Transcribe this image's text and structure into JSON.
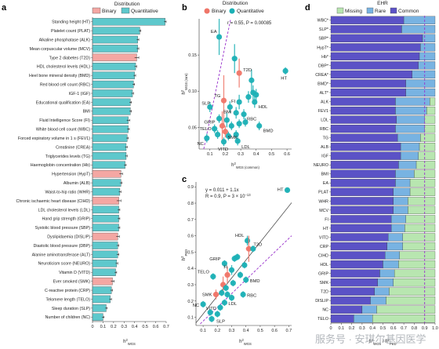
{
  "colors": {
    "binary": "#f4a7a3",
    "quantitative": "#5ec8cc",
    "point_binary": "#ef7568",
    "point_quant": "#1bb0b5",
    "missing": "#b8e6b0",
    "rare": "#78b3e2",
    "common": "#5b52c6",
    "guide": "#9932cc"
  },
  "watermark": "服务号 · 安琪尔基因医学",
  "chart_data": [
    {
      "panel": "a",
      "type": "bar",
      "legend_title": "Distribution",
      "legend": [
        "Binary",
        "Quantitative"
      ],
      "xlabel_main": "h",
      "xlabel_sup": "2",
      "xlabel_sub": "WGS",
      "xlim": [
        0,
        0.7
      ],
      "xticks": [
        "0",
        "0.1",
        "0.2",
        "0.3",
        "0.4",
        "0.5",
        "0.6",
        "0.7"
      ],
      "categories": [
        "Standing height (HT)",
        "Platelet count (PLAT)",
        "Alkaline phosphatase (ALK)",
        "Mean corpuscular volume (MCV)",
        "Type 2 diabetes (T2D)",
        "HDL cholesterol levels (HDL)",
        "Heel bone mineral density (BMD)",
        "Red blood cell count (RBC)",
        "IGF-1 (IGF)",
        "Educational qualification (EA)",
        "BMI",
        "Fluid Intelligence Score (FI)",
        "White blood cell count (WBC)",
        "Forced expiratory volume in 1 s (FEV1)",
        "Creatinine (CREA)",
        "Triglycerides levels (TG)",
        "Haemoglobin concentration (Hb)",
        "Hypertension (HypT)",
        "Albumin (ALB)",
        "Waist-to-hip ratio (WHR)",
        "Chronic ischaemic heart disease (CIHD)",
        "LDL cholesterol levels (LDL)",
        "Hand grip strength (GRIP)",
        "Systolic blood pressure (SBP)",
        "Dyslipidaemia (DISLIP)",
        "Diastolic blood pressure (DBP)",
        "Alanine aminotransferase (ALT)",
        "Neuroticism score (NEURO)",
        "Vitamin D (VITD)",
        "Ever smoked (SMK)",
        "C-reactive protein (CRP)",
        "Telomere length (TELO)",
        "Sleep duration (SLP)",
        "Number of children (NC)"
      ],
      "values": [
        0.69,
        0.45,
        0.43,
        0.43,
        0.42,
        0.41,
        0.4,
        0.39,
        0.38,
        0.36,
        0.36,
        0.34,
        0.34,
        0.33,
        0.32,
        0.32,
        0.31,
        0.27,
        0.27,
        0.26,
        0.25,
        0.25,
        0.25,
        0.25,
        0.24,
        0.24,
        0.24,
        0.23,
        0.22,
        0.19,
        0.18,
        0.17,
        0.13,
        0.1
      ],
      "errors": [
        0.01,
        0.01,
        0.01,
        0.01,
        0.02,
        0.01,
        0.01,
        0.01,
        0.01,
        0.01,
        0.01,
        0.015,
        0.01,
        0.01,
        0.01,
        0.01,
        0.01,
        0.015,
        0.01,
        0.01,
        0.02,
        0.01,
        0.01,
        0.01,
        0.015,
        0.01,
        0.01,
        0.01,
        0.01,
        0.015,
        0.01,
        0.01,
        0.01,
        0.01
      ],
      "types": [
        "Q",
        "Q",
        "Q",
        "Q",
        "B",
        "Q",
        "Q",
        "Q",
        "Q",
        "Q",
        "Q",
        "Q",
        "Q",
        "Q",
        "Q",
        "Q",
        "Q",
        "B",
        "Q",
        "Q",
        "B",
        "Q",
        "Q",
        "Q",
        "B",
        "Q",
        "Q",
        "Q",
        "Q",
        "B",
        "Q",
        "Q",
        "Q",
        "Q"
      ]
    },
    {
      "panel": "b",
      "type": "scatter",
      "legend_title": "Distribution",
      "legend": [
        "Binary",
        "Quantitative"
      ],
      "annotation": "r = 0.55, P = 0.00085",
      "xlabel_main": "h",
      "xlabel_sup": "2",
      "xlabel_sub": "WGS (common)",
      "ylabel_main": "h",
      "ylabel_sup": "2",
      "ylabel_sub": "WGS (rare)",
      "xlim": [
        0.03,
        0.63
      ],
      "ylim": [
        0.02,
        0.2
      ],
      "xticks": [
        0.1,
        0.2,
        0.3,
        0.4,
        0.5,
        0.6
      ],
      "yticks": [
        0.05,
        0.1,
        0.15
      ],
      "ytick_labels": [
        "0.05",
        "0.10",
        "0.15"
      ],
      "points": [
        {
          "label": "EA",
          "x": 0.16,
          "y": 0.175,
          "t": "Q",
          "ey": 0.025
        },
        {
          "label": "",
          "x": 0.26,
          "y": 0.145,
          "t": "Q",
          "ey": 0.02
        },
        {
          "label": "T2D",
          "x": 0.29,
          "y": 0.125,
          "t": "B",
          "ey": 0.02
        },
        {
          "label": "HT",
          "x": 0.59,
          "y": 0.128,
          "t": "Q",
          "ey": 0.005
        },
        {
          "label": "",
          "x": 0.37,
          "y": 0.115,
          "t": "Q",
          "ey": 0.015
        },
        {
          "label": "",
          "x": 0.38,
          "y": 0.098,
          "t": "Q",
          "ey": 0.01
        },
        {
          "label": "",
          "x": 0.4,
          "y": 0.095,
          "t": "Q",
          "ey": 0.008
        },
        {
          "label": "",
          "x": 0.35,
          "y": 0.092,
          "t": "Q",
          "ey": 0.008
        },
        {
          "label": "FI",
          "x": 0.29,
          "y": 0.085,
          "t": "Q",
          "ey": 0.01
        },
        {
          "label": "HDL",
          "x": 0.39,
          "y": 0.085,
          "t": "Q",
          "ey": 0.008
        },
        {
          "label": "TG",
          "x": 0.19,
          "y": 0.087,
          "t": "B",
          "ey": 0.035
        },
        {
          "label": "BMI",
          "x": 0.23,
          "y": 0.078,
          "t": "Q",
          "ey": 0.008
        },
        {
          "label": "SLP",
          "x": 0.1,
          "y": 0.078,
          "t": "Q",
          "ey": 0.007
        },
        {
          "label": "",
          "x": 0.27,
          "y": 0.07,
          "t": "Q",
          "ey": 0.008
        },
        {
          "label": "RBC",
          "x": 0.32,
          "y": 0.068,
          "t": "Q",
          "ey": 0.007
        },
        {
          "label": "GRIP",
          "x": 0.16,
          "y": 0.062,
          "t": "Q",
          "ey": 0.006
        },
        {
          "label": "",
          "x": 0.21,
          "y": 0.06,
          "t": "Q",
          "ey": 0.01
        },
        {
          "label": "TELO",
          "x": 0.13,
          "y": 0.048,
          "t": "Q",
          "ey": 0.006
        },
        {
          "label": "",
          "x": 0.18,
          "y": 0.052,
          "t": "B",
          "ey": 0.02
        },
        {
          "label": "SMK",
          "x": 0.2,
          "y": 0.044,
          "t": "B",
          "ey": 0.008
        },
        {
          "label": "",
          "x": 0.24,
          "y": 0.052,
          "t": "Q",
          "ey": 0.006
        },
        {
          "label": "",
          "x": 0.29,
          "y": 0.055,
          "t": "Q",
          "ey": 0.006
        },
        {
          "label": "",
          "x": 0.33,
          "y": 0.057,
          "t": "Q",
          "ey": 0.006
        },
        {
          "label": "BMD",
          "x": 0.42,
          "y": 0.052,
          "t": "Q",
          "ey": 0.006
        },
        {
          "label": "NC",
          "x": 0.08,
          "y": 0.035,
          "t": "Q",
          "ey": 0.006
        },
        {
          "label": "",
          "x": 0.15,
          "y": 0.04,
          "t": "Q",
          "ey": 0.006
        },
        {
          "label": "",
          "x": 0.22,
          "y": 0.038,
          "t": "Q",
          "ey": 0.006
        },
        {
          "label": "",
          "x": 0.27,
          "y": 0.04,
          "t": "Q",
          "ey": 0.006
        },
        {
          "label": "VITD",
          "x": 0.19,
          "y": 0.03,
          "t": "Q",
          "ey": 0.006
        },
        {
          "label": "LDL",
          "x": 0.28,
          "y": 0.031,
          "t": "Q",
          "ey": 0.006
        }
      ]
    },
    {
      "panel": "c",
      "type": "scatter",
      "annotation_lines": [
        "y = 0.011 + 1.1x",
        "R = 0.9, P = 3 × 10",
        "−13"
      ],
      "xlabel_main": "h",
      "xlabel_sup": "2",
      "xlabel_sub": "WGS",
      "ylabel_main": "h",
      "ylabel_sup": "2",
      "ylabel_sub": "PED",
      "xlim": [
        0.05,
        0.72
      ],
      "ylim": [
        0.05,
        0.93
      ],
      "xticks": [
        0.1,
        0.2,
        0.3,
        0.4,
        0.5,
        0.6,
        0.7
      ],
      "yticks": [
        0.1,
        0.2,
        0.3,
        0.4,
        0.5,
        0.6,
        0.7,
        0.8,
        0.9
      ],
      "points": [
        {
          "label": "HT",
          "x": 0.69,
          "y": 0.88,
          "t": "Q",
          "ex": 0.01,
          "ey": 0.01
        },
        {
          "label": "HDL",
          "x": 0.41,
          "y": 0.57,
          "t": "Q",
          "ex": 0.01,
          "ey": 0.03
        },
        {
          "label": "T2D",
          "x": 0.42,
          "y": 0.52,
          "t": "B",
          "ex": 0.02,
          "ey": 0.08
        },
        {
          "label": "",
          "x": 0.45,
          "y": 0.52,
          "t": "Q",
          "ex": 0.01,
          "ey": 0.02
        },
        {
          "label": "GRIP",
          "x": 0.25,
          "y": 0.43,
          "t": "Q",
          "ex": 0.01,
          "ey": 0.02
        },
        {
          "label": "",
          "x": 0.32,
          "y": 0.46,
          "t": "Q",
          "ex": 0.01,
          "ey": 0.02
        },
        {
          "label": "",
          "x": 0.34,
          "y": 0.47,
          "t": "Q",
          "ex": 0.01,
          "ey": 0.02
        },
        {
          "label": "FI",
          "x": 0.3,
          "y": 0.39,
          "t": "Q",
          "ex": 0.015,
          "ey": 0.03
        },
        {
          "label": "",
          "x": 0.39,
          "y": 0.42,
          "t": "Q",
          "ex": 0.01,
          "ey": 0.02
        },
        {
          "label": "",
          "x": 0.27,
          "y": 0.36,
          "t": "B",
          "ex": 0.02,
          "ey": 0.05
        },
        {
          "label": "",
          "x": 0.36,
          "y": 0.36,
          "t": "Q",
          "ex": 0.01,
          "ey": 0.02
        },
        {
          "label": "BMD",
          "x": 0.4,
          "y": 0.33,
          "t": "Q",
          "ex": 0.01,
          "ey": 0.02
        },
        {
          "label": "TELO",
          "x": 0.17,
          "y": 0.35,
          "t": "Q",
          "ex": 0.01,
          "ey": 0.02
        },
        {
          "label": "",
          "x": 0.24,
          "y": 0.3,
          "t": "B",
          "ex": 0.015,
          "ey": 0.05
        },
        {
          "label": "",
          "x": 0.31,
          "y": 0.31,
          "t": "Q",
          "ex": 0.01,
          "ey": 0.02
        },
        {
          "label": "",
          "x": 0.26,
          "y": 0.28,
          "t": "Q",
          "ex": 0.01,
          "ey": 0.02
        },
        {
          "label": "RBC",
          "x": 0.38,
          "y": 0.24,
          "t": "Q",
          "ex": 0.01,
          "ey": 0.02
        },
        {
          "label": "SMK",
          "x": 0.19,
          "y": 0.24,
          "t": "B",
          "ex": 0.02,
          "ey": 0.03
        },
        {
          "label": "",
          "x": 0.23,
          "y": 0.25,
          "t": "Q",
          "ex": 0.01,
          "ey": 0.02
        },
        {
          "label": "",
          "x": 0.27,
          "y": 0.24,
          "t": "Q",
          "ex": 0.01,
          "ey": 0.02
        },
        {
          "label": "",
          "x": 0.3,
          "y": 0.22,
          "t": "Q",
          "ex": 0.01,
          "ey": 0.02
        },
        {
          "label": "LDL",
          "x": 0.25,
          "y": 0.19,
          "t": "Q",
          "ex": 0.01,
          "ey": 0.02
        },
        {
          "label": "VITD",
          "x": 0.22,
          "y": 0.16,
          "t": "Q",
          "ex": 0.01,
          "ey": 0.02
        },
        {
          "label": "",
          "x": 0.2,
          "y": 0.12,
          "t": "Q",
          "ex": 0.01,
          "ey": 0.02
        },
        {
          "label": "NC",
          "x": 0.1,
          "y": 0.18,
          "t": "Q",
          "ex": 0.01,
          "ey": 0.02
        },
        {
          "label": "",
          "x": 0.15,
          "y": 0.13,
          "t": "Q",
          "ex": 0.01,
          "ey": 0.02
        },
        {
          "label": "SLP",
          "x": 0.16,
          "y": 0.09,
          "t": "Q",
          "ex": 0.01,
          "ey": 0.02
        }
      ]
    },
    {
      "panel": "d",
      "type": "bar",
      "stacked": true,
      "horizontal": true,
      "legend_title": "EHR",
      "legend": [
        "Missing",
        "Rare",
        "Common"
      ],
      "xlabel_main": "h",
      "xlabel_sup": "2",
      "xlabel_sub": "WGS",
      "xlabel_rest": " / h",
      "xlabel_sup2": "2",
      "xlabel_sub2": "PED",
      "xlim": [
        0,
        1
      ],
      "xticks": [
        "0",
        "0.1",
        "0.2",
        "0.3",
        "0.4",
        "0.5",
        "0.6",
        "0.7",
        "0.8",
        "0.9",
        "1.0"
      ],
      "vline": 0.9,
      "categories": [
        "WBC*",
        "SLP*",
        "SBP*",
        "HypT*",
        "Hb*",
        "DBP*",
        "CREA*",
        "BMD*",
        "ALT*",
        "ALK",
        "FEV1",
        "LDL",
        "RBC",
        "TG",
        "ALB",
        "IGF",
        "NEURO",
        "BMI",
        "EA",
        "PLAT",
        "WHR",
        "MCV",
        "FI",
        "HT",
        "VITD",
        "CRP",
        "CIHD",
        "HDL",
        "GRIP",
        "SMK",
        "T2D",
        "DISLIP",
        "NC",
        "TELO"
      ],
      "common": [
        0.7,
        0.68,
        0.88,
        0.86,
        0.85,
        0.84,
        0.78,
        0.72,
        0.72,
        0.62,
        0.62,
        0.63,
        0.62,
        0.64,
        0.67,
        0.67,
        0.65,
        0.62,
        0.62,
        0.6,
        0.6,
        0.6,
        0.58,
        0.58,
        0.55,
        0.54,
        0.52,
        0.5,
        0.47,
        0.45,
        0.42,
        0.38,
        0.3,
        0.22
      ],
      "rare": [
        0.3,
        0.32,
        0.12,
        0.14,
        0.15,
        0.16,
        0.22,
        0.28,
        0.28,
        0.33,
        0.3,
        0.27,
        0.28,
        0.22,
        0.18,
        0.17,
        0.17,
        0.18,
        0.14,
        0.16,
        0.14,
        0.14,
        0.14,
        0.13,
        0.14,
        0.15,
        0.14,
        0.15,
        0.14,
        0.15,
        0.14,
        0.15,
        0.14,
        0.18
      ]
    }
  ]
}
